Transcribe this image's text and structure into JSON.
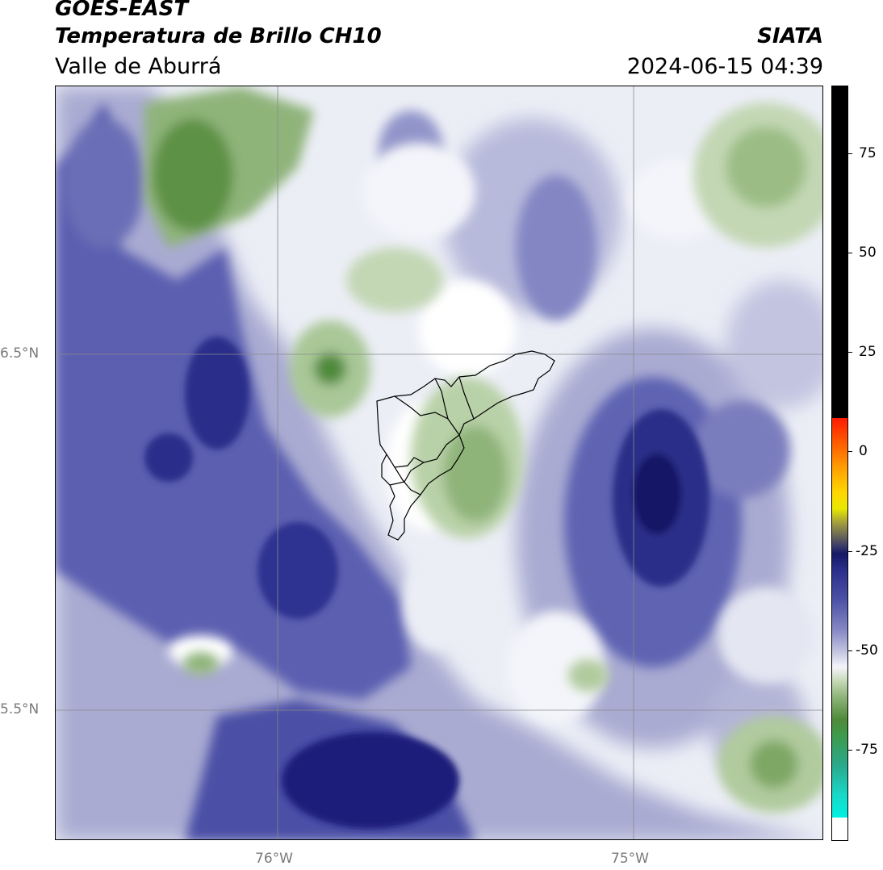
{
  "header": {
    "satellite": "GOES-EAST",
    "product": "Temperatura de Brillo CH10",
    "region": "Valle de Aburrá",
    "organization": "SIATA",
    "timestamp": "2024-06-15 04:39"
  },
  "map": {
    "lon_labels": [
      "76°W",
      "75°W"
    ],
    "lat_labels": [
      "6.5°N",
      "5.5°N"
    ],
    "gridlines": true
  },
  "colorbar": {
    "tick_labels": [
      "75",
      "50",
      "25",
      "0",
      "-25",
      "-50",
      "-75"
    ],
    "tick_values": [
      75,
      50,
      25,
      0,
      -25,
      -50,
      -75
    ],
    "range": [
      -93,
      92
    ]
  },
  "colors": {
    "deep_blue": "#1c1f7a",
    "mid_blue": "#4b50a6",
    "light_blue": "#a9abd2",
    "pale": "#eceef6",
    "light_green": "#c3d7b4",
    "mid_green": "#6e9a55",
    "dark_green": "#3f7f2e"
  }
}
